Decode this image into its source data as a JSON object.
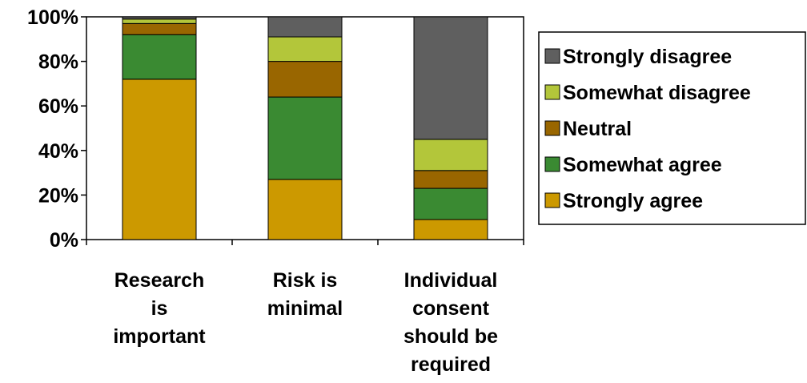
{
  "chart_data": {
    "type": "bar",
    "stacked": true,
    "percent_stacked": true,
    "categories": [
      [
        "Research",
        "is",
        "important"
      ],
      [
        "Risk is",
        "minimal"
      ],
      [
        "Individual",
        "consent",
        "should be",
        "required"
      ]
    ],
    "series": [
      {
        "name": "Strongly agree",
        "color": "#cc9900",
        "values": [
          72,
          27,
          9
        ]
      },
      {
        "name": "Somewhat agree",
        "color": "#3a8a32",
        "values": [
          20,
          37,
          14
        ]
      },
      {
        "name": "Neutral",
        "color": "#996600",
        "values": [
          5,
          16,
          8
        ]
      },
      {
        "name": "Somewhat disagree",
        "color": "#b3c63a",
        "values": [
          2,
          11,
          14
        ]
      },
      {
        "name": "Strongly disagree",
        "color": "#5f5f5f",
        "values": [
          1,
          9,
          55
        ]
      }
    ],
    "ylim": [
      0,
      100
    ],
    "yticks": [
      "0%",
      "20%",
      "40%",
      "60%",
      "80%",
      "100%"
    ],
    "legend_position": "right",
    "grid": false
  }
}
